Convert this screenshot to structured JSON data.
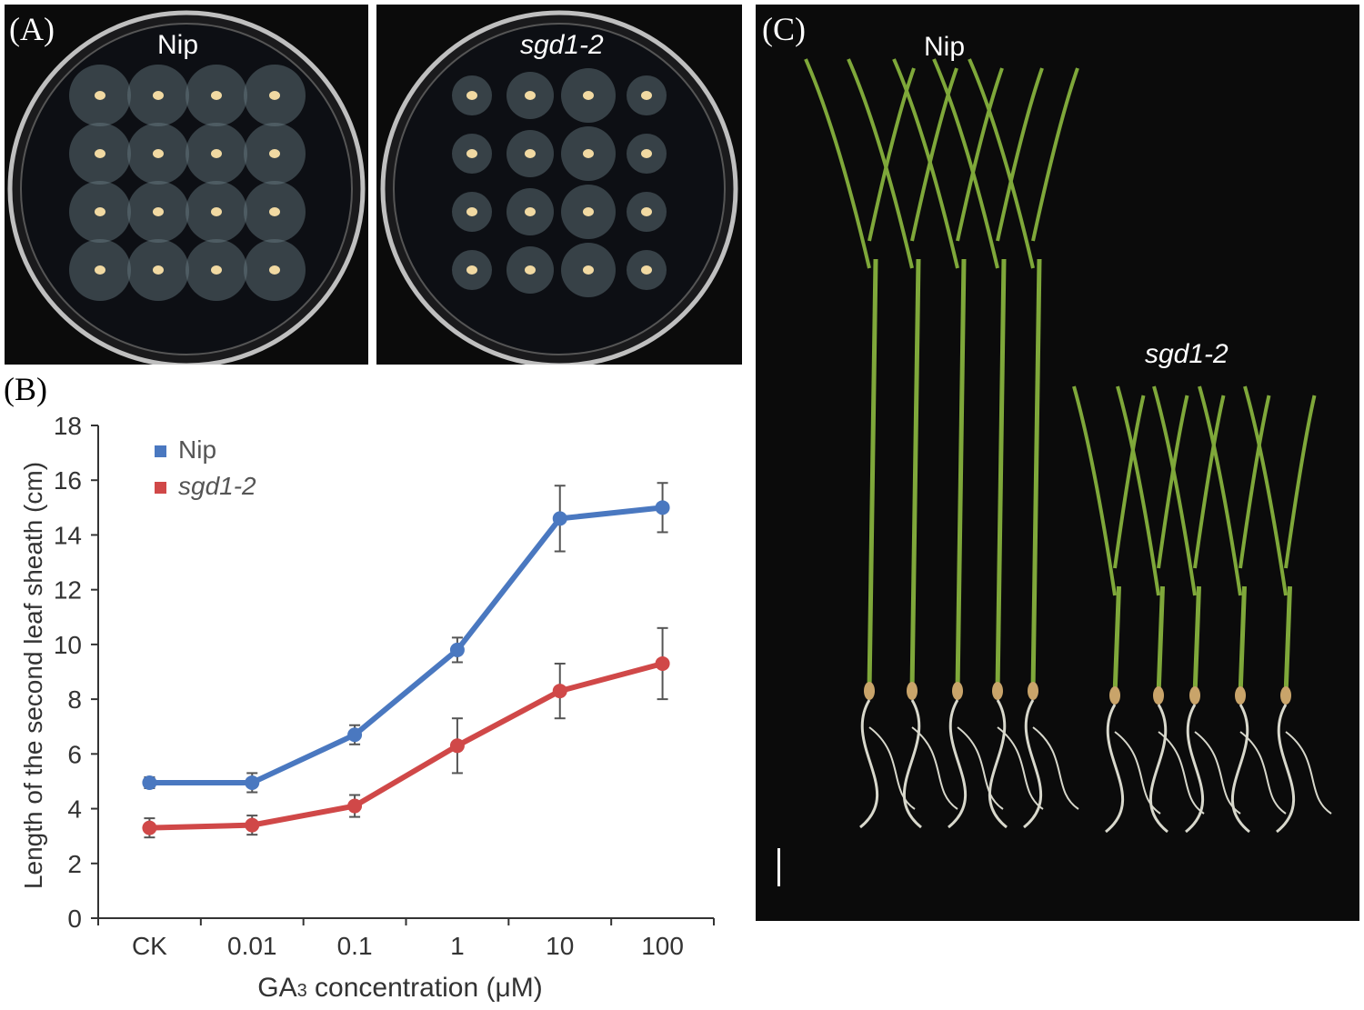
{
  "panels": {
    "a": {
      "letter": "(A)",
      "left_label": "Nip",
      "right_label": "sgd1-2",
      "grid_rows": 4,
      "grid_cols": 4
    },
    "b": {
      "letter": "(B)"
    },
    "c": {
      "letter": "(C)",
      "left_label": "Nip",
      "right_label": "sgd1-2",
      "nip_plants": 5,
      "mutant_plants": 5
    }
  },
  "colors": {
    "nip": "#4a78c0",
    "sgd": "#d04848",
    "errorbar": "#555555",
    "photo_bg": "#0b0b0b",
    "leaf": "#7fa83a",
    "root": "#d8d8cc"
  },
  "chart_data": {
    "type": "line",
    "categories": [
      "CK",
      "0.01",
      "0.1",
      "1",
      "10",
      "100"
    ],
    "xlabel_prefix": "GA",
    "xlabel_sub": "3",
    "xlabel_suffix": " concentration (μM)",
    "ylabel": "Length of the second leaf sheath (cm)",
    "ylim": [
      0,
      18
    ],
    "yticks": [
      "0",
      "2",
      "4",
      "6",
      "8",
      "10",
      "12",
      "14",
      "16",
      "18"
    ],
    "legend_position": "top-left",
    "series": [
      {
        "name": "Nip",
        "italic": false,
        "values": [
          4.95,
          4.95,
          6.7,
          9.8,
          14.6,
          15.0
        ],
        "errors": [
          0.2,
          0.35,
          0.35,
          0.45,
          1.2,
          0.9
        ]
      },
      {
        "name": "sgd1-2",
        "italic": true,
        "values": [
          3.3,
          3.4,
          4.1,
          6.3,
          8.3,
          9.3
        ],
        "errors": [
          0.35,
          0.35,
          0.4,
          1.0,
          1.0,
          1.3
        ]
      }
    ]
  }
}
